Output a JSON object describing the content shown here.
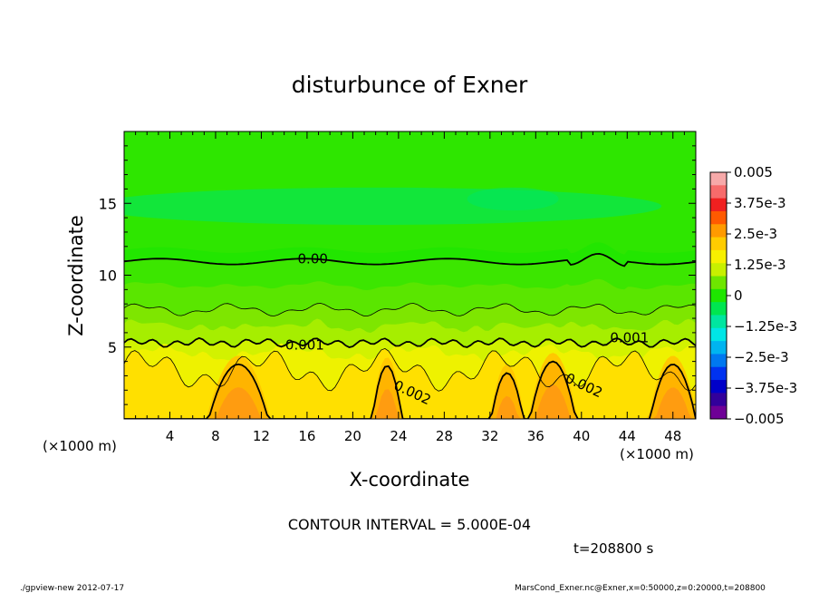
{
  "chart_data": {
    "type": "heatmap",
    "title": "disturbunce of Exner",
    "xlabel": "X-coordinate",
    "ylabel": "Z-coordinate",
    "x_unit_label": "(×1000 m)",
    "x_unit_label_right": "(×1000 m)",
    "xlim": [
      0,
      50
    ],
    "ylim": [
      0,
      20
    ],
    "x_ticks": [
      4,
      8,
      12,
      16,
      20,
      24,
      28,
      32,
      36,
      40,
      44,
      48
    ],
    "x_tick_labels": [
      "4",
      "8",
      "12",
      "16",
      "20",
      "24",
      "28",
      "32",
      "36",
      "40",
      "44",
      "48"
    ],
    "y_ticks": [
      5,
      10,
      15
    ],
    "y_tick_labels": [
      "5",
      "10",
      "15"
    ],
    "colorbar": {
      "range": [
        -0.005,
        0.005
      ],
      "tick_values": [
        0.005,
        0.00375,
        0.0025,
        0.00125,
        0,
        -0.00125,
        -0.0025,
        -0.00375,
        -0.005
      ],
      "tick_labels": [
        "0.005",
        "3.75e-3",
        "2.5e-3",
        "1.25e-3",
        "0",
        "−1.25e-3",
        "−2.5e-3",
        "−3.75e-3",
        "−0.005"
      ],
      "colors": [
        "#f7a9a9",
        "#f76b6b",
        "#f02020",
        "#ff5a00",
        "#ff9a00",
        "#ffcc00",
        "#f7f000",
        "#c8f000",
        "#6ee600",
        "#1ee600",
        "#00e650",
        "#00e6a0",
        "#00e6e6",
        "#00b4f0",
        "#0078f0",
        "#0032f0",
        "#0000c8",
        "#32009b",
        "#6e0096"
      ]
    },
    "contour_labels": [
      {
        "text": "0.00",
        "x": 16.5,
        "z": 11.1
      },
      {
        "text": "0.001",
        "x": 15.8,
        "z": 5.1
      },
      {
        "text": "0.001",
        "x": 44.2,
        "z": 5.6
      },
      {
        "text": "0.002",
        "x": 25.2,
        "z": 1.8
      },
      {
        "text": "0.002",
        "x": 40.2,
        "z": 2.3
      }
    ],
    "contour_interval_text": "CONTOUR INTERVAL = 5.000E-04",
    "time_text": "t=208800 s"
  },
  "footer": {
    "left": "./gpview-new  2012-07-17",
    "right": "MarsCond_Exner.nc@Exner,x=0:50000,z=0:20000,t=208800"
  }
}
